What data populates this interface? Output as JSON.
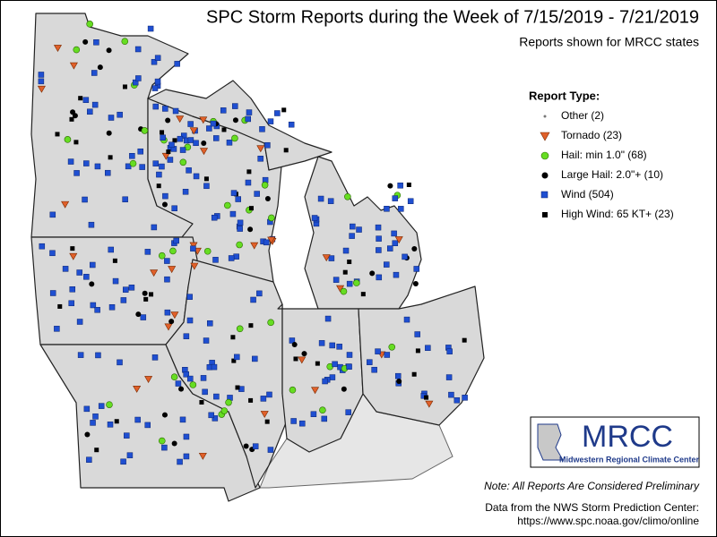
{
  "header": {
    "title": "SPC Storm Reports during the Week of 7/15/2019 - 7/21/2019",
    "subtitle": "Reports shown for MRCC states"
  },
  "legend": {
    "title": "Report Type:",
    "items": [
      "Other (2)",
      "Tornado (23)",
      "Hail: min 1.0\" (68)",
      "Large Hail: 2.0\"+ (10)",
      "Wind (504)",
      "High Wind: 65 KT+ (23)"
    ]
  },
  "logo": {
    "name": "MRCC",
    "full_name": "Midwestern Regional Climate Center"
  },
  "note": "Note: All Reports Are Considered Preliminary",
  "source": {
    "line1": "Data from the NWS Storm Prediction Center:",
    "line2": "https://www.spc.noaa.gov/climo/online"
  }
}
